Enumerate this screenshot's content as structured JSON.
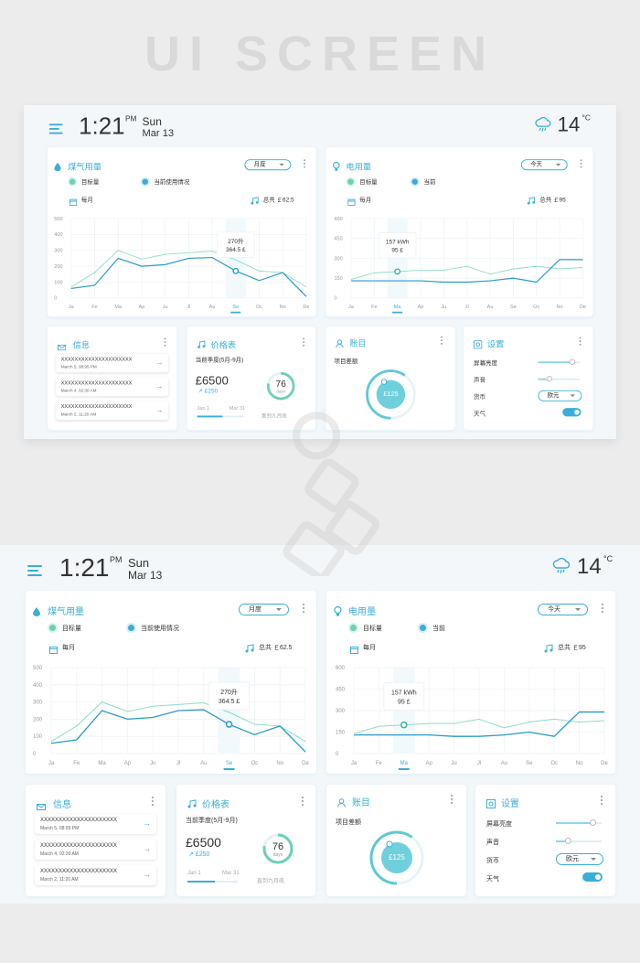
{
  "hero_title": "UI SCREEN",
  "colors": {
    "accent": "#3aaed8",
    "accent_light": "#6ad0b6",
    "background": "#f4f7f9"
  },
  "header": {
    "time": "1:21",
    "ampm": "PM",
    "day_name": "Sun",
    "date": "Mar 13",
    "temperature": "14",
    "temp_unit": "°C",
    "weather_icon": "cloud-rain-icon"
  },
  "gas": {
    "title": "煤气用量",
    "select": "月度",
    "legend_target": "目标量",
    "legend_current": "当前使用情况",
    "period": "每月",
    "total": "总共 ￡62.5",
    "tooltip_line1": "270升",
    "tooltip_line2": "364.5 £"
  },
  "elec": {
    "title": "电用量",
    "select": "今天",
    "legend_target": "目标量",
    "legend_current": "当前",
    "period": "每月",
    "total": "总共 ￡95",
    "tooltip_line1": "157 kWh",
    "tooltip_line2": "95 £"
  },
  "info": {
    "title": "信息",
    "items": [
      {
        "text": "XXXXXXXXXXXXXXXXXXXXX",
        "date": "March 5, 08:95 PM"
      },
      {
        "text": "XXXXXXXXXXXXXXXXXXXXX",
        "date": "March 4, 02:30 AM"
      },
      {
        "text": "XXXXXXXXXXXXXXXXXXXXX",
        "date": "March 2, 11:20 AM"
      }
    ]
  },
  "price": {
    "title": "价格表",
    "season": "当前季度(5月-9月)",
    "amount": "£6500",
    "change": "↗ £250",
    "start": "Jan 1",
    "end": "Mar 31",
    "days": "76",
    "days_label": "days",
    "remaining": "直到九月底",
    "progress": 0.55,
    "ring_progress": 0.78
  },
  "account": {
    "title": "账目",
    "label": "项目差额",
    "balance": "£125",
    "progress": 0.6
  },
  "settings": {
    "title": "设置",
    "brightness_label": "屏幕亮度",
    "brightness": 0.8,
    "sound_label": "声音",
    "sound": 0.25,
    "currency_label": "货币",
    "currency": "欧元",
    "weather_label": "天气",
    "weather_on": true
  },
  "chart_data": [
    {
      "type": "line",
      "title": "煤气用量",
      "categories": [
        "Ja",
        "Fe",
        "Ma",
        "Ap",
        "Ju",
        "Jl",
        "Au",
        "Se",
        "Oc",
        "No",
        "De"
      ],
      "selected": "Se",
      "ylim": [
        0,
        500
      ],
      "yticks": [
        "0",
        "100",
        "200",
        "300",
        "400",
        "500"
      ],
      "series": [
        {
          "name": "目标量",
          "values": [
            70,
            160,
            300,
            245,
            275,
            285,
            295,
            240,
            170,
            160,
            70
          ]
        },
        {
          "name": "当前使用情况",
          "values": [
            60,
            80,
            250,
            200,
            210,
            250,
            255,
            170,
            110,
            160,
            10
          ]
        }
      ]
    },
    {
      "type": "line",
      "title": "电用量",
      "categories": [
        "Ja",
        "Fe",
        "Ma",
        "Ap",
        "Ju",
        "Jl",
        "Au",
        "Se",
        "Oc",
        "No",
        "De"
      ],
      "selected": "Ma",
      "ylim": [
        0,
        600
      ],
      "yticks": [
        "0",
        "150",
        "300",
        "450",
        "600"
      ],
      "series": [
        {
          "name": "目标量",
          "values": [
            140,
            190,
            200,
            210,
            210,
            240,
            180,
            220,
            240,
            220,
            230
          ]
        },
        {
          "name": "当前",
          "values": [
            130,
            130,
            130,
            130,
            120,
            120,
            130,
            150,
            120,
            290,
            290
          ]
        }
      ]
    }
  ]
}
